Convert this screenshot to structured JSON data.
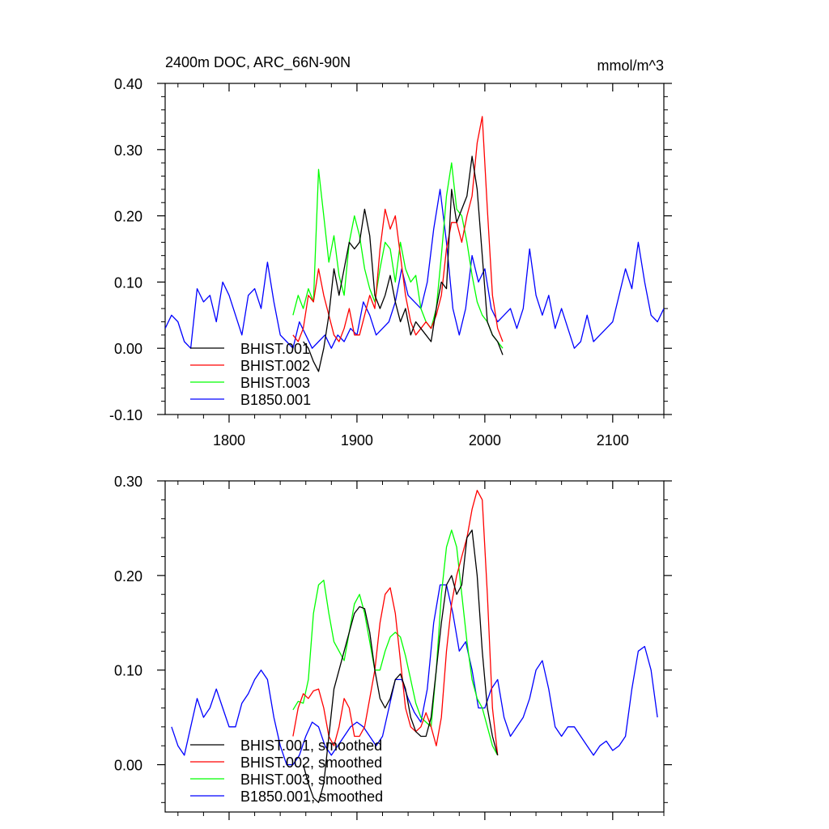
{
  "figure": {
    "title_left": "2400m DOC, ARC_66N-90N",
    "title_right": "mmol/m^3"
  },
  "chart_data": [
    {
      "type": "line",
      "title": "2400m DOC, ARC_66N-90N",
      "units": "mmol/m^3",
      "xlabel": "",
      "ylabel": "",
      "xlim": [
        1750,
        2140
      ],
      "ylim": [
        -0.1,
        0.4
      ],
      "x_ticks": [
        1800,
        1900,
        2000,
        2100
      ],
      "x_tick_labels": [
        "1800",
        "1900",
        "2000",
        "2100"
      ],
      "y_ticks": [
        -0.1,
        0.0,
        0.1,
        0.2,
        0.3,
        0.4
      ],
      "y_tick_labels": [
        "-0.10",
        "0.00",
        "0.10",
        "0.20",
        "0.30",
        "0.40"
      ],
      "grid": false,
      "legend_position": "bottom-left",
      "series": [
        {
          "name": "BHIST.001",
          "color": "#000000",
          "x": [
            1858,
            1862,
            1866,
            1870,
            1874,
            1878,
            1882,
            1886,
            1890,
            1894,
            1898,
            1902,
            1906,
            1910,
            1914,
            1918,
            1922,
            1926,
            1930,
            1934,
            1938,
            1942,
            1946,
            1950,
            1954,
            1958,
            1962,
            1966,
            1970,
            1974,
            1978,
            1982,
            1986,
            1990,
            1994,
            1998,
            2002,
            2006,
            2010,
            2014
          ],
          "y": [
            0.01,
            0.0,
            -0.02,
            -0.035,
            0.0,
            0.05,
            0.12,
            0.08,
            0.12,
            0.16,
            0.15,
            0.16,
            0.21,
            0.17,
            0.08,
            0.06,
            0.08,
            0.11,
            0.07,
            0.04,
            0.06,
            0.02,
            0.04,
            0.03,
            0.02,
            0.01,
            0.06,
            0.1,
            0.09,
            0.24,
            0.19,
            0.21,
            0.23,
            0.29,
            0.24,
            0.14,
            0.04,
            0.02,
            0.01,
            -0.01
          ]
        },
        {
          "name": "BHIST.002",
          "color": "#ff0000",
          "x": [
            1850,
            1854,
            1858,
            1862,
            1866,
            1870,
            1874,
            1878,
            1882,
            1886,
            1890,
            1894,
            1898,
            1902,
            1906,
            1910,
            1914,
            1918,
            1922,
            1926,
            1930,
            1934,
            1938,
            1942,
            1946,
            1950,
            1954,
            1958,
            1962,
            1966,
            1970,
            1974,
            1978,
            1982,
            1986,
            1990,
            1994,
            1998,
            2002,
            2006,
            2010,
            2014
          ],
          "y": [
            0.02,
            0.01,
            0.03,
            0.08,
            0.07,
            0.12,
            0.08,
            0.05,
            0.02,
            0.01,
            0.03,
            0.06,
            0.02,
            0.02,
            0.05,
            0.08,
            0.06,
            0.15,
            0.21,
            0.18,
            0.2,
            0.14,
            0.08,
            0.04,
            0.02,
            0.03,
            0.04,
            0.03,
            0.05,
            0.08,
            0.15,
            0.19,
            0.19,
            0.16,
            0.2,
            0.23,
            0.31,
            0.35,
            0.21,
            0.08,
            0.03,
            0.01
          ]
        },
        {
          "name": "BHIST.003",
          "color": "#00ff00",
          "x": [
            1850,
            1854,
            1858,
            1862,
            1866,
            1870,
            1874,
            1878,
            1882,
            1886,
            1890,
            1894,
            1898,
            1902,
            1906,
            1910,
            1914,
            1918,
            1922,
            1926,
            1930,
            1934,
            1938,
            1942,
            1946,
            1950,
            1954,
            1958,
            1962,
            1966,
            1970,
            1974,
            1978,
            1982,
            1986,
            1990,
            1994,
            1998,
            2002,
            2006,
            2010,
            2014
          ],
          "y": [
            0.05,
            0.08,
            0.06,
            0.09,
            0.07,
            0.27,
            0.2,
            0.13,
            0.17,
            0.11,
            0.08,
            0.16,
            0.2,
            0.17,
            0.12,
            0.09,
            0.07,
            0.12,
            0.16,
            0.15,
            0.1,
            0.16,
            0.12,
            0.1,
            0.11,
            0.06,
            0.04,
            0.03,
            0.06,
            0.14,
            0.23,
            0.28,
            0.21,
            0.2,
            0.16,
            0.11,
            0.07,
            0.05,
            0.04,
            0.02,
            0.01,
            0.0
          ]
        },
        {
          "name": "B1850.001",
          "color": "#0000ff",
          "x": [
            1750,
            1755,
            1760,
            1765,
            1770,
            1775,
            1780,
            1785,
            1790,
            1795,
            1800,
            1805,
            1810,
            1815,
            1820,
            1825,
            1830,
            1835,
            1840,
            1845,
            1850,
            1855,
            1860,
            1865,
            1870,
            1875,
            1880,
            1885,
            1890,
            1895,
            1900,
            1905,
            1910,
            1915,
            1920,
            1925,
            1930,
            1935,
            1940,
            1945,
            1950,
            1955,
            1960,
            1965,
            1970,
            1975,
            1980,
            1985,
            1990,
            1995,
            2000,
            2005,
            2010,
            2015,
            2020,
            2025,
            2030,
            2035,
            2040,
            2045,
            2050,
            2055,
            2060,
            2065,
            2070,
            2075,
            2080,
            2085,
            2090,
            2095,
            2100,
            2105,
            2110,
            2115,
            2120,
            2125,
            2130,
            2135,
            2140
          ],
          "y": [
            0.03,
            0.05,
            0.04,
            0.01,
            0.0,
            0.09,
            0.07,
            0.08,
            0.04,
            0.1,
            0.08,
            0.05,
            0.02,
            0.08,
            0.09,
            0.06,
            0.13,
            0.07,
            0.02,
            0.01,
            0.0,
            0.04,
            0.02,
            0.0,
            0.01,
            0.02,
            0.0,
            0.02,
            0.01,
            0.03,
            0.02,
            0.07,
            0.05,
            0.02,
            0.03,
            0.04,
            0.07,
            0.12,
            0.08,
            0.07,
            0.06,
            0.1,
            0.18,
            0.24,
            0.16,
            0.06,
            0.02,
            0.06,
            0.14,
            0.1,
            0.12,
            0.06,
            0.04,
            0.05,
            0.06,
            0.03,
            0.06,
            0.15,
            0.08,
            0.05,
            0.08,
            0.03,
            0.06,
            0.03,
            0.0,
            0.01,
            0.05,
            0.01,
            0.02,
            0.03,
            0.04,
            0.08,
            0.12,
            0.09,
            0.16,
            0.1,
            0.05,
            0.04,
            0.06
          ]
        }
      ]
    },
    {
      "type": "line",
      "title": "",
      "xlabel": "",
      "ylabel": "",
      "xlim": [
        1750,
        2140
      ],
      "ylim": [
        -0.05,
        0.3
      ],
      "x_ticks": [
        1800,
        1900,
        2000,
        2100
      ],
      "x_tick_labels": [
        "",
        "",
        "",
        ""
      ],
      "y_ticks": [
        0.0,
        0.1,
        0.2,
        0.3
      ],
      "y_tick_labels": [
        "0.00",
        "0.10",
        "0.20",
        "0.30"
      ],
      "grid": false,
      "legend_position": "bottom-left",
      "series": [
        {
          "name": "BHIST.001, smoothed",
          "color": "#000000",
          "x": [
            1858,
            1862,
            1866,
            1870,
            1874,
            1878,
            1882,
            1886,
            1890,
            1894,
            1898,
            1902,
            1906,
            1910,
            1914,
            1918,
            1922,
            1926,
            1930,
            1934,
            1938,
            1942,
            1946,
            1950,
            1954,
            1958,
            1962,
            1966,
            1970,
            1974,
            1978,
            1982,
            1986,
            1990,
            1994,
            1998,
            2002,
            2006,
            2010
          ],
          "y": [
            0.0,
            -0.02,
            -0.035,
            -0.04,
            -0.02,
            0.03,
            0.08,
            0.1,
            0.12,
            0.14,
            0.16,
            0.167,
            0.165,
            0.14,
            0.1,
            0.07,
            0.06,
            0.07,
            0.09,
            0.096,
            0.08,
            0.05,
            0.035,
            0.03,
            0.03,
            0.05,
            0.1,
            0.15,
            0.19,
            0.2,
            0.18,
            0.19,
            0.24,
            0.248,
            0.2,
            0.12,
            0.06,
            0.03,
            0.01
          ]
        },
        {
          "name": "BHIST.002, smoothed",
          "color": "#ff0000",
          "x": [
            1850,
            1854,
            1858,
            1862,
            1866,
            1870,
            1874,
            1878,
            1882,
            1886,
            1890,
            1894,
            1898,
            1902,
            1906,
            1910,
            1914,
            1918,
            1922,
            1926,
            1930,
            1934,
            1938,
            1942,
            1946,
            1950,
            1954,
            1958,
            1962,
            1966,
            1970,
            1974,
            1978,
            1982,
            1986,
            1990,
            1994,
            1998,
            2002,
            2006,
            2010
          ],
          "y": [
            0.03,
            0.06,
            0.075,
            0.07,
            0.078,
            0.08,
            0.06,
            0.03,
            0.02,
            0.04,
            0.07,
            0.06,
            0.03,
            0.03,
            0.04,
            0.07,
            0.1,
            0.15,
            0.18,
            0.187,
            0.16,
            0.11,
            0.06,
            0.04,
            0.035,
            0.04,
            0.055,
            0.04,
            0.02,
            0.05,
            0.12,
            0.17,
            0.2,
            0.22,
            0.24,
            0.27,
            0.29,
            0.28,
            0.18,
            0.06,
            0.01
          ]
        },
        {
          "name": "BHIST.003, smoothed",
          "color": "#00ff00",
          "x": [
            1850,
            1854,
            1858,
            1862,
            1866,
            1870,
            1874,
            1878,
            1882,
            1886,
            1890,
            1894,
            1898,
            1902,
            1906,
            1910,
            1914,
            1918,
            1922,
            1926,
            1930,
            1934,
            1938,
            1942,
            1946,
            1950,
            1954,
            1958,
            1962,
            1966,
            1970,
            1974,
            1978,
            1982,
            1986,
            1990,
            1994,
            1998,
            2002,
            2006,
            2010
          ],
          "y": [
            0.058,
            0.067,
            0.065,
            0.09,
            0.16,
            0.19,
            0.195,
            0.16,
            0.13,
            0.12,
            0.11,
            0.14,
            0.17,
            0.18,
            0.16,
            0.13,
            0.1,
            0.1,
            0.12,
            0.135,
            0.14,
            0.135,
            0.115,
            0.09,
            0.065,
            0.05,
            0.045,
            0.04,
            0.1,
            0.18,
            0.23,
            0.248,
            0.23,
            0.18,
            0.13,
            0.09,
            0.07,
            0.06,
            0.04,
            0.02,
            0.01
          ]
        },
        {
          "name": "B1850.001, smoothed",
          "color": "#0000ff",
          "x": [
            1755,
            1760,
            1765,
            1770,
            1775,
            1780,
            1785,
            1790,
            1795,
            1800,
            1805,
            1810,
            1815,
            1820,
            1825,
            1830,
            1835,
            1840,
            1845,
            1850,
            1855,
            1860,
            1865,
            1870,
            1875,
            1880,
            1885,
            1890,
            1895,
            1900,
            1905,
            1910,
            1915,
            1920,
            1925,
            1930,
            1935,
            1940,
            1945,
            1950,
            1955,
            1960,
            1965,
            1970,
            1975,
            1980,
            1985,
            1990,
            1995,
            2000,
            2005,
            2010,
            2015,
            2020,
            2025,
            2030,
            2035,
            2040,
            2045,
            2050,
            2055,
            2060,
            2065,
            2070,
            2075,
            2080,
            2085,
            2090,
            2095,
            2100,
            2105,
            2110,
            2115,
            2120,
            2125,
            2130,
            2135
          ],
          "y": [
            0.04,
            0.02,
            0.01,
            0.04,
            0.07,
            0.05,
            0.06,
            0.08,
            0.06,
            0.04,
            0.04,
            0.065,
            0.075,
            0.09,
            0.1,
            0.09,
            0.05,
            0.02,
            0.0,
            0.0,
            0.01,
            0.03,
            0.045,
            0.04,
            0.02,
            0.01,
            0.02,
            0.03,
            0.04,
            0.045,
            0.04,
            0.03,
            0.02,
            0.03,
            0.06,
            0.09,
            0.09,
            0.07,
            0.055,
            0.045,
            0.08,
            0.15,
            0.19,
            0.19,
            0.16,
            0.12,
            0.13,
            0.1,
            0.06,
            0.06,
            0.08,
            0.09,
            0.05,
            0.03,
            0.04,
            0.05,
            0.07,
            0.1,
            0.11,
            0.08,
            0.04,
            0.03,
            0.04,
            0.04,
            0.03,
            0.02,
            0.01,
            0.02,
            0.025,
            0.015,
            0.02,
            0.03,
            0.08,
            0.12,
            0.125,
            0.1,
            0.05
          ]
        }
      ]
    }
  ]
}
